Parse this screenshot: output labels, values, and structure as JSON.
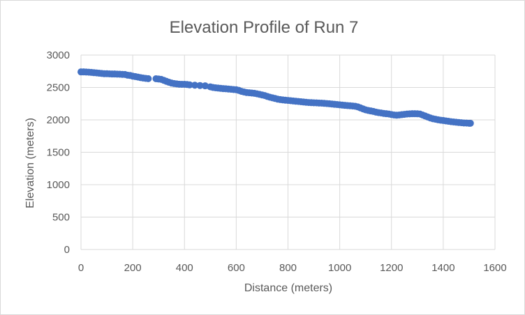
{
  "chart_data": {
    "type": "scatter",
    "title": "Elevation Profile of Run 7",
    "xlabel": "Distance (meters)",
    "ylabel": "Elevation (meters)",
    "xlim": [
      0,
      1600
    ],
    "ylim": [
      0,
      3000
    ],
    "x_ticks": [
      "0",
      "200",
      "400",
      "600",
      "800",
      "1000",
      "1200",
      "1400",
      "1600"
    ],
    "y_ticks": [
      "0",
      "500",
      "1000",
      "1500",
      "2000",
      "2500",
      "3000"
    ],
    "grid": true,
    "series_color": "#4472c4",
    "x": [
      0,
      10,
      20,
      30,
      40,
      50,
      60,
      70,
      80,
      90,
      100,
      110,
      120,
      130,
      140,
      150,
      160,
      170,
      180,
      190,
      200,
      210,
      220,
      230,
      240,
      250,
      260,
      290,
      300,
      310,
      320,
      330,
      340,
      350,
      360,
      370,
      380,
      390,
      400,
      410,
      420,
      440,
      460,
      480,
      500,
      510,
      520,
      530,
      540,
      550,
      560,
      570,
      580,
      590,
      600,
      610,
      620,
      630,
      640,
      650,
      660,
      670,
      680,
      690,
      700,
      710,
      720,
      730,
      740,
      750,
      760,
      770,
      780,
      790,
      800,
      810,
      820,
      830,
      840,
      850,
      860,
      870,
      880,
      890,
      900,
      910,
      920,
      930,
      940,
      950,
      960,
      970,
      980,
      990,
      1000,
      1010,
      1020,
      1030,
      1040,
      1050,
      1060,
      1070,
      1080,
      1090,
      1100,
      1110,
      1120,
      1130,
      1140,
      1150,
      1160,
      1170,
      1180,
      1190,
      1200,
      1210,
      1220,
      1230,
      1240,
      1250,
      1260,
      1270,
      1280,
      1290,
      1300,
      1310,
      1320,
      1330,
      1340,
      1350,
      1360,
      1370,
      1380,
      1390,
      1400,
      1410,
      1420,
      1430,
      1440,
      1450,
      1460,
      1470,
      1480,
      1490,
      1500,
      1505
    ],
    "y": [
      2740,
      2740,
      2738,
      2735,
      2732,
      2728,
      2725,
      2720,
      2716,
      2712,
      2712,
      2710,
      2708,
      2708,
      2706,
      2704,
      2702,
      2700,
      2690,
      2685,
      2675,
      2668,
      2660,
      2652,
      2645,
      2640,
      2636,
      2635,
      2630,
      2625,
      2610,
      2595,
      2580,
      2568,
      2560,
      2555,
      2550,
      2548,
      2548,
      2546,
      2540,
      2535,
      2530,
      2525,
      2510,
      2500,
      2495,
      2490,
      2486,
      2482,
      2480,
      2476,
      2472,
      2468,
      2465,
      2455,
      2440,
      2430,
      2422,
      2418,
      2414,
      2410,
      2402,
      2394,
      2385,
      2375,
      2362,
      2350,
      2340,
      2330,
      2320,
      2313,
      2308,
      2304,
      2300,
      2296,
      2292,
      2288,
      2284,
      2280,
      2276,
      2272,
      2268,
      2266,
      2264,
      2262,
      2260,
      2258,
      2255,
      2252,
      2248,
      2244,
      2240,
      2236,
      2232,
      2228,
      2224,
      2220,
      2218,
      2214,
      2210,
      2200,
      2185,
      2170,
      2155,
      2145,
      2138,
      2130,
      2120,
      2112,
      2106,
      2100,
      2095,
      2090,
      2082,
      2075,
      2072,
      2075,
      2080,
      2085,
      2090,
      2093,
      2095,
      2095,
      2094,
      2090,
      2075,
      2060,
      2045,
      2030,
      2018,
      2010,
      2002,
      1995,
      1990,
      1984,
      1978,
      1972,
      1968,
      1964,
      1960,
      1956,
      1952,
      1950,
      1948,
      1948
    ]
  }
}
